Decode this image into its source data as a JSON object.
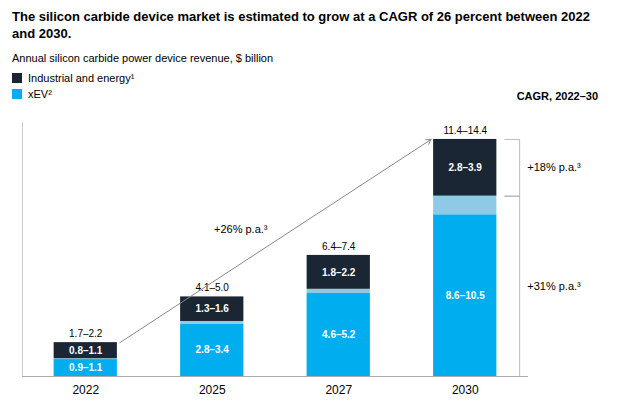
{
  "chart_data": {
    "type": "bar",
    "stacked": true,
    "title": "The silicon carbide device market is estimated to grow at a CAGR of 26 percent between 2022 and 2030.",
    "subtitle": "Annual silicon carbide power device revenue, $ billion",
    "categories": [
      "2022",
      "2025",
      "2027",
      "2030"
    ],
    "series": [
      {
        "name": "xEV²",
        "color": "#00AEEF",
        "values": [
          1.0,
          3.1,
          4.9,
          9.55
        ],
        "value_labels": [
          "0.9–1.1",
          "2.8–3.4",
          "4.6–5.2",
          "8.6–10.5"
        ]
      },
      {
        "color": "#8ECAE6",
        "values": [
          0.05,
          0.15,
          0.25,
          1.1
        ]
      },
      {
        "name": "Industrial and energy¹",
        "color": "#1A2634",
        "values": [
          0.95,
          1.45,
          2.0,
          3.35
        ],
        "value_labels": [
          "0.8–1.1",
          "1.3–1.6",
          "1.8–2.2",
          "2.8–3.9"
        ]
      }
    ],
    "total_labels": [
      "1.7–2.2",
      "4.1–5.0",
      "6.4–7.4",
      "11.4–14.4"
    ],
    "annotations": [
      {
        "text": "CAGR, 2022–30"
      },
      {
        "text": "+26% p.a.³",
        "between": [
          "2022",
          "2030"
        ]
      },
      {
        "text": "+18% p.a.³",
        "series": "Industrial and energy¹"
      },
      {
        "text": "+31% p.a.³",
        "series": "xEV²"
      }
    ],
    "ylim": [
      0,
      15
    ],
    "tick_labels": "x",
    "grid": false
  }
}
